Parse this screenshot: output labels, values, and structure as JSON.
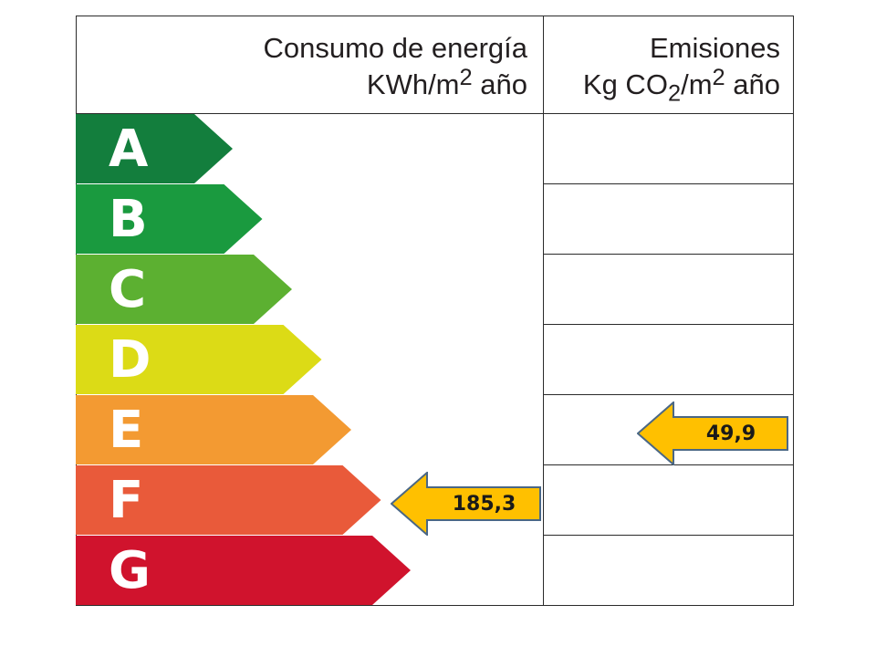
{
  "header": {
    "energy_title": "Consumo de energía",
    "energy_unit_pre": "KWh/m",
    "energy_unit_sup": "2",
    "energy_unit_post": " año",
    "emissions_title": "Emisiones",
    "emissions_unit_pre": "Kg CO",
    "emissions_unit_sub": "2",
    "emissions_unit_mid": "/m",
    "emissions_unit_sup": "2",
    "emissions_unit_post": " año"
  },
  "bands": [
    {
      "letter": "A",
      "color": "#137e3d"
    },
    {
      "letter": "B",
      "color": "#1a9a3f"
    },
    {
      "letter": "C",
      "color": "#5cb031"
    },
    {
      "letter": "D",
      "color": "#dcdb16"
    },
    {
      "letter": "E",
      "color": "#f39a32"
    },
    {
      "letter": "F",
      "color": "#e95a3a"
    },
    {
      "letter": "G",
      "color": "#d0132d"
    }
  ],
  "ratings": {
    "energy": {
      "value": "185,3",
      "band": "F",
      "color": "#ffc000"
    },
    "emissions": {
      "value": "49,9",
      "band": "E",
      "color": "#ffc000"
    }
  }
}
